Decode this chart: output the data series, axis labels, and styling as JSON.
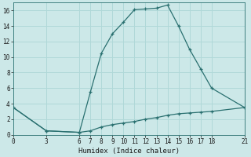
{
  "xlabel": "Humidex (Indice chaleur)",
  "ylabel": "",
  "bg_color": "#cce8e8",
  "line_color": "#2a7070",
  "grid_color": "#b0d8d8",
  "xlim": [
    0,
    21
  ],
  "ylim": [
    0,
    17
  ],
  "xticks": [
    0,
    3,
    6,
    7,
    8,
    9,
    10,
    11,
    12,
    13,
    14,
    15,
    16,
    17,
    18,
    21
  ],
  "yticks": [
    0,
    2,
    4,
    6,
    8,
    10,
    12,
    14,
    16
  ],
  "line1_x": [
    0,
    3,
    6,
    7,
    8,
    9,
    10,
    11,
    12,
    13,
    14,
    15,
    16,
    17,
    18,
    21
  ],
  "line1_y": [
    3.5,
    0.5,
    0.3,
    5.5,
    10.5,
    13.0,
    14.5,
    16.1,
    16.2,
    16.3,
    16.7,
    14.0,
    11.0,
    8.5,
    6.0,
    3.5
  ],
  "line2_x": [
    0,
    3,
    6,
    7,
    8,
    9,
    10,
    11,
    12,
    13,
    14,
    15,
    16,
    17,
    18,
    21
  ],
  "line2_y": [
    3.5,
    0.5,
    0.3,
    0.5,
    1.0,
    1.3,
    1.5,
    1.7,
    2.0,
    2.2,
    2.5,
    2.7,
    2.8,
    2.9,
    3.0,
    3.5
  ],
  "tick_fontsize": 5.5,
  "xlabel_fontsize": 6.5
}
